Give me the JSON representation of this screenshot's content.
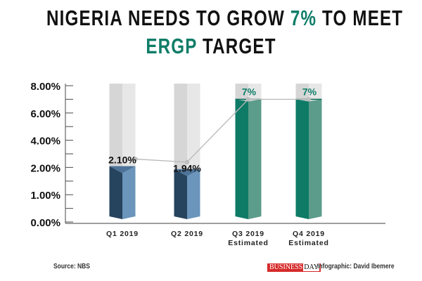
{
  "title": {
    "line1_before": "NIGERIA NEEDS TO GROW ",
    "line1_highlight": "7%",
    "line1_after": " TO MEET",
    "line2_highlight": "ERGP",
    "line2_after": " TARGET"
  },
  "chart_data": {
    "type": "bar",
    "categories": [
      "Q1 2019",
      "Q2 2019",
      "Q3 2019 Estimated",
      "Q4 2019 Estimated"
    ],
    "category_lines": [
      [
        "Q1 2019"
      ],
      [
        "Q2 2019"
      ],
      [
        "Q3 2019",
        "Estimated"
      ],
      [
        "Q4 2019",
        "Estimated"
      ]
    ],
    "values": [
      2.1,
      1.94,
      7,
      7
    ],
    "data_labels": [
      "2.10%",
      "1.94%",
      "7%",
      "7%"
    ],
    "y_ticks": [
      0,
      1,
      2,
      4,
      6,
      8
    ],
    "y_tick_labels": [
      "0.00%",
      "1.00%",
      "2.00%",
      "4.00%",
      "6.00%",
      "8.00%"
    ],
    "ylim": [
      0,
      8
    ],
    "overlay": "line connecting values",
    "colors": {
      "actual_dark": "#27445e",
      "actual_light": "#6b95bb",
      "estimate_dark": "#0e7b66",
      "estimate_light": "#5b9c8a",
      "background": "#e3e3e3",
      "label_green": "#0f7d68",
      "line": "#b8b8b8"
    }
  },
  "footer": {
    "source": "Source: NBS",
    "logo_a": "BUSINESS",
    "logo_b": "DAY",
    "credit": "Infographic: David  Ibemere"
  }
}
